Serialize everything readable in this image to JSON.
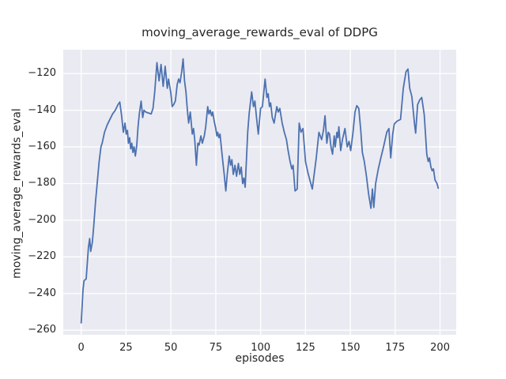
{
  "title": "moving_average_rewards_eval of DDPG",
  "colors": {
    "figure_bg": "#ffffff",
    "axes_bg": "#eaeaf2",
    "grid": "#ffffff",
    "line": "#4c72b0",
    "text": "#262626"
  },
  "chart_data": {
    "type": "line",
    "title": "moving_average_rewards_eval of DDPG",
    "xlabel": "episodes",
    "ylabel": "moving_average_rewards_eval",
    "legend": null,
    "grid": true,
    "xlim": [
      -10,
      209
    ],
    "ylim": [
      -262.5,
      -107
    ],
    "xticks": [
      0,
      25,
      50,
      75,
      100,
      125,
      150,
      175,
      200
    ],
    "xtick_labels": [
      "0",
      "25",
      "50",
      "75",
      "100",
      "125",
      "150",
      "175",
      "200"
    ],
    "yticks": [
      -260,
      -240,
      -220,
      -200,
      -180,
      -160,
      -140,
      -120
    ],
    "ytick_labels": [
      "−260",
      "−240",
      "−220",
      "−200",
      "−180",
      "−160",
      "−140",
      "−120"
    ],
    "x": [
      0,
      1,
      1.6,
      2.8,
      4,
      4.7,
      5.3,
      6.2,
      7,
      8,
      9,
      10,
      11,
      11.7,
      13,
      14.5,
      16,
      17.5,
      19,
      20.5,
      21.5,
      22.5,
      23.5,
      24.4,
      25.1,
      25.8,
      26.3,
      27,
      27.6,
      28.2,
      28.8,
      29.5,
      30.2,
      31,
      31.7,
      32.4,
      33.4,
      34.3,
      35,
      36,
      37.5,
      39,
      40,
      41,
      42.2,
      43.4,
      44.5,
      45.7,
      46.8,
      48,
      48.7,
      50,
      50.7,
      51.5,
      52.5,
      53.5,
      54.3,
      55.1,
      56,
      56.8,
      57.6,
      58.4,
      59.2,
      59.9,
      60.8,
      61.9,
      62.6,
      63.3,
      64.2,
      65,
      65.7,
      66.7,
      67.5,
      68.6,
      69.4,
      70.5,
      71.2,
      71.9,
      72.7,
      73.3,
      74.1,
      75,
      75.6,
      76.1,
      76.7,
      77.4,
      78.1,
      78.9,
      79.7,
      80.6,
      81.4,
      82.5,
      83.3,
      84,
      84.8,
      85.7,
      86.6,
      87.6,
      88.4,
      89.2,
      90,
      90.7,
      91.4,
      92.8,
      93.6,
      95,
      96,
      96.8,
      97.6,
      98.7,
      100,
      101,
      102.5,
      103.5,
      104.2,
      104.9,
      105.6,
      106.5,
      107.5,
      109,
      109.8,
      110.7,
      112,
      113.2,
      114.4,
      115.3,
      116.4,
      117.4,
      118.1,
      119.2,
      120.4,
      121.5,
      122.5,
      123.6,
      125,
      126.6,
      128.8,
      131,
      132.5,
      134,
      135,
      135.9,
      136.9,
      137.7,
      138.4,
      139.2,
      140.1,
      141,
      141.6,
      142.5,
      143.1,
      143.6,
      144.6,
      145.6,
      147,
      148.3,
      149.3,
      150.2,
      151.5,
      152.6,
      153.6,
      154.7,
      155.8,
      156.7,
      157.8,
      159,
      160.2,
      161.5,
      162.3,
      163.1,
      164.1,
      165.6,
      167,
      168.5,
      170.3,
      171.5,
      172.5,
      173.6,
      174.5,
      176,
      178,
      179.5,
      181,
      182.1,
      183.1,
      184.3,
      185.8,
      186.4,
      187.5,
      188.6,
      189.8,
      191.2,
      192.6,
      193.4,
      194.1,
      194.9,
      195.6,
      196.3,
      197.2,
      198.3,
      199
    ],
    "y": [
      -256,
      -238,
      -233,
      -232,
      -215,
      -210,
      -217,
      -212,
      -203,
      -190,
      -179,
      -168,
      -160,
      -158,
      -152,
      -148,
      -145,
      -142,
      -140,
      -137,
      -135.5,
      -143,
      -152,
      -147,
      -153,
      -151,
      -158,
      -155,
      -161,
      -158,
      -163,
      -160,
      -165,
      -159,
      -149,
      -142,
      -135,
      -144,
      -140,
      -141,
      -141.5,
      -142,
      -139,
      -130,
      -114,
      -124,
      -115,
      -127,
      -116,
      -128,
      -123,
      -131,
      -138,
      -137,
      -135,
      -126,
      -123,
      -125,
      -119,
      -112,
      -124,
      -130,
      -140,
      -147,
      -141,
      -153,
      -150,
      -156,
      -170,
      -158,
      -159,
      -154,
      -158,
      -154,
      -149,
      -138,
      -142,
      -140,
      -143,
      -141,
      -146,
      -150,
      -154,
      -152,
      -155,
      -153,
      -160,
      -168,
      -175,
      -184,
      -175,
      -165,
      -170,
      -167,
      -175,
      -170,
      -176,
      -169,
      -175,
      -171,
      -180,
      -177,
      -182,
      -152,
      -142,
      -130,
      -138,
      -135,
      -143,
      -153,
      -139,
      -138,
      -123,
      -133,
      -131,
      -138,
      -136,
      -144,
      -147,
      -138,
      -141,
      -139,
      -147,
      -152,
      -156,
      -162,
      -168,
      -172,
      -170,
      -184,
      -183,
      -147,
      -152,
      -150,
      -168,
      -175,
      -183,
      -166,
      -152,
      -156,
      -151,
      -143,
      -158,
      -152,
      -153,
      -160,
      -164,
      -154,
      -160,
      -152,
      -155,
      -149,
      -162,
      -156,
      -150,
      -160,
      -157,
      -162,
      -152,
      -141,
      -137.5,
      -139,
      -151,
      -163,
      -168,
      -176,
      -186,
      -193.5,
      -183,
      -193,
      -180,
      -172,
      -166,
      -160,
      -152,
      -150,
      -166,
      -153,
      -147.5,
      -146,
      -145,
      -128,
      -119,
      -117.5,
      -128,
      -132.5,
      -147.5,
      -152.5,
      -137,
      -134.5,
      -133,
      -142.5,
      -164,
      -168,
      -166,
      -171,
      -173,
      -172,
      -178,
      -180,
      -182.5
    ]
  }
}
